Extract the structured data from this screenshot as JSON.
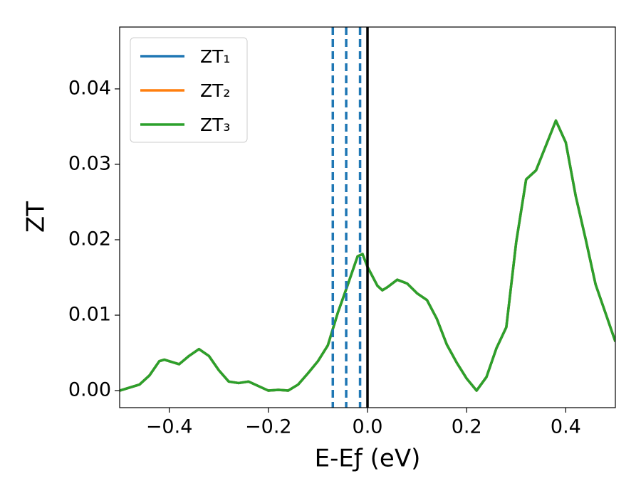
{
  "chart_data": {
    "type": "line",
    "xlabel": "E-Eƒ (eV)",
    "ylabel": "ZT",
    "xlim": [
      -0.5,
      0.5
    ],
    "ylim": [
      -0.00226,
      0.0482
    ],
    "xticks": [
      {
        "value": -0.4,
        "label": "−0.4"
      },
      {
        "value": -0.2,
        "label": "−0.2"
      },
      {
        "value": 0,
        "label": "0.0"
      },
      {
        "value": 0.2,
        "label": "0.2"
      },
      {
        "value": 0.4,
        "label": "0.4"
      }
    ],
    "yticks": [
      {
        "value": 0,
        "label": "0.00"
      },
      {
        "value": 0.01,
        "label": "0.01"
      },
      {
        "value": 0.02,
        "label": "0.02"
      },
      {
        "value": 0.03,
        "label": "0.03"
      },
      {
        "value": 0.04,
        "label": "0.04"
      }
    ],
    "x": [
      -0.5,
      -0.46,
      -0.44,
      -0.42,
      -0.41,
      -0.38,
      -0.36,
      -0.34,
      -0.32,
      -0.3,
      -0.28,
      -0.26,
      -0.24,
      -0.22,
      -0.2,
      -0.18,
      -0.16,
      -0.14,
      -0.12,
      -0.1,
      -0.08,
      -0.06,
      -0.04,
      -0.02,
      -0.01,
      0,
      0.02,
      0.03,
      0.04,
      0.06,
      0.08,
      0.1,
      0.12,
      0.14,
      0.16,
      0.18,
      0.2,
      0.22,
      0.24,
      0.26,
      0.28,
      0.3,
      0.32,
      0.34,
      0.36,
      0.38,
      0.4,
      0.42,
      0.44,
      0.46,
      0.48,
      0.5
    ],
    "series": [
      {
        "name": "ZT₁",
        "color": "#1f77b4",
        "values": [
          0,
          0.0008,
          0.002,
          0.0039,
          0.0041,
          0.0035,
          0.0046,
          0.0055,
          0.0046,
          0.0027,
          0.0012,
          0.001,
          0.0012,
          0.0006,
          0,
          0.0001,
          0,
          0.0008,
          0.0023,
          0.0039,
          0.006,
          0.0103,
          0.014,
          0.0178,
          0.0181,
          0.0164,
          0.0139,
          0.0133,
          0.0137,
          0.0147,
          0.0142,
          0.0129,
          0.012,
          0.0095,
          0.0061,
          0.0037,
          0.0016,
          0,
          0.0018,
          0.0056,
          0.0084,
          0.0197,
          0.028,
          0.0292,
          0.0325,
          0.0358,
          0.0329,
          0.0258,
          0.0201,
          0.0141,
          0.0103,
          0.0065
        ]
      },
      {
        "name": "ZT₂",
        "color": "#ff7f0e",
        "values": [
          0,
          0.0008,
          0.002,
          0.0039,
          0.0041,
          0.0035,
          0.0046,
          0.0055,
          0.0046,
          0.0027,
          0.0012,
          0.001,
          0.0012,
          0.0006,
          0,
          0.0001,
          0,
          0.0008,
          0.0023,
          0.0039,
          0.006,
          0.0103,
          0.014,
          0.0178,
          0.0181,
          0.0164,
          0.0139,
          0.0133,
          0.0137,
          0.0147,
          0.0142,
          0.0129,
          0.012,
          0.0095,
          0.0061,
          0.0037,
          0.0016,
          0,
          0.0018,
          0.0056,
          0.0084,
          0.0197,
          0.028,
          0.0292,
          0.0325,
          0.0358,
          0.0329,
          0.0258,
          0.0201,
          0.0141,
          0.0103,
          0.0065
        ]
      },
      {
        "name": "ZT₃",
        "color": "#2ca02c",
        "values": [
          0,
          0.0008,
          0.002,
          0.0039,
          0.0041,
          0.0035,
          0.0046,
          0.0055,
          0.0046,
          0.0027,
          0.0012,
          0.001,
          0.0012,
          0.0006,
          0,
          0.0001,
          0,
          0.0008,
          0.0023,
          0.0039,
          0.006,
          0.0103,
          0.014,
          0.0178,
          0.0181,
          0.0164,
          0.0139,
          0.0133,
          0.0137,
          0.0147,
          0.0142,
          0.0129,
          0.012,
          0.0095,
          0.0061,
          0.0037,
          0.0016,
          0,
          0.0018,
          0.0056,
          0.0084,
          0.0197,
          0.028,
          0.0292,
          0.0325,
          0.0358,
          0.0329,
          0.0258,
          0.0201,
          0.0141,
          0.0103,
          0.0065
        ]
      }
    ],
    "vlines": [
      -0.07,
      -0.043,
      -0.015
    ],
    "vline_color": "#1f77b4",
    "reference_line": 0,
    "reference_color": "#000000",
    "legend": "upper left",
    "grid": false
  }
}
